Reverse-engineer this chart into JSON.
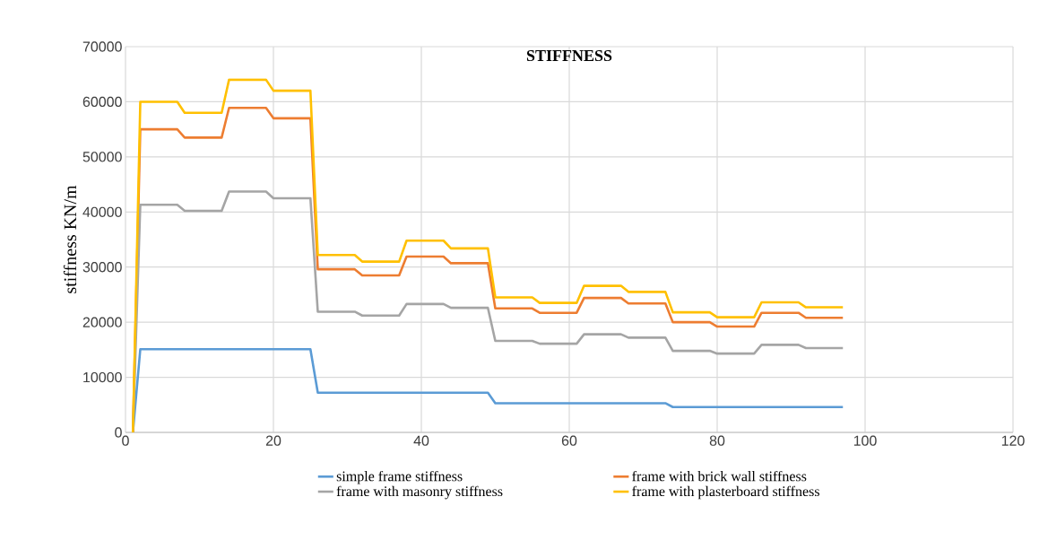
{
  "chart_data": {
    "type": "line",
    "title": "STIFFNESS",
    "ylabel": "stiffness  KN/m",
    "xlim": [
      0,
      120
    ],
    "xticks": [
      0,
      20,
      40,
      60,
      80,
      100,
      120
    ],
    "ylim": [
      0,
      70000
    ],
    "yticks": [
      0,
      10000,
      20000,
      30000,
      40000,
      50000,
      60000,
      70000
    ],
    "grid": true,
    "legend": "bottom",
    "marker": "none",
    "line_style": "solid",
    "series": [
      {
        "name": "simple frame stiffness",
        "color": "#5b9bd5",
        "x": [
          1,
          2,
          25,
          26,
          49,
          50,
          73,
          74,
          97
        ],
        "values": [
          0,
          15100,
          15100,
          7200,
          7200,
          5300,
          5300,
          4600,
          4600
        ]
      },
      {
        "name": "frame with  brick wall stiffness",
        "color": "#ed7d31",
        "x": [
          1,
          2,
          7,
          8,
          13,
          14,
          19,
          20,
          25,
          26,
          31,
          32,
          37,
          38,
          43,
          44,
          49,
          50,
          55,
          56,
          61,
          62,
          67,
          68,
          73,
          74,
          79,
          80,
          85,
          86,
          91,
          92,
          97
        ],
        "values": [
          0,
          55000,
          55000,
          53500,
          53500,
          58900,
          58900,
          57000,
          57000,
          29600,
          29600,
          28500,
          28500,
          31900,
          31900,
          30700,
          30700,
          22500,
          22500,
          21700,
          21700,
          24400,
          24400,
          23400,
          23400,
          20000,
          20000,
          19200,
          19200,
          21700,
          21700,
          20800,
          20800
        ]
      },
      {
        "name": "frame with masonry stiffness",
        "color": "#a5a5a5",
        "x": [
          1,
          2,
          7,
          8,
          13,
          14,
          19,
          20,
          25,
          26,
          31,
          32,
          37,
          38,
          43,
          44,
          49,
          50,
          55,
          56,
          61,
          62,
          67,
          68,
          73,
          74,
          79,
          80,
          85,
          86,
          91,
          92,
          97
        ],
        "values": [
          0,
          41300,
          41300,
          40200,
          40200,
          43700,
          43700,
          42500,
          42500,
          21900,
          21900,
          21200,
          21200,
          23300,
          23300,
          22600,
          22600,
          16600,
          16600,
          16100,
          16100,
          17800,
          17800,
          17200,
          17200,
          14800,
          14800,
          14300,
          14300,
          15900,
          15900,
          15300,
          15300
        ]
      },
      {
        "name": "frame with plasterboard stiffness",
        "color": "#ffc000",
        "x": [
          1,
          2,
          7,
          8,
          13,
          14,
          19,
          20,
          25,
          26,
          31,
          32,
          37,
          38,
          43,
          44,
          49,
          50,
          55,
          56,
          61,
          62,
          67,
          68,
          73,
          74,
          79,
          80,
          85,
          86,
          91,
          92,
          97
        ],
        "values": [
          0,
          60000,
          60000,
          58000,
          58000,
          64000,
          64000,
          62000,
          62000,
          32200,
          32200,
          31000,
          31000,
          34800,
          34800,
          33400,
          33400,
          24500,
          24500,
          23500,
          23500,
          26600,
          26600,
          25500,
          25500,
          21800,
          21800,
          20900,
          20900,
          23600,
          23600,
          22700,
          22700
        ]
      }
    ]
  }
}
